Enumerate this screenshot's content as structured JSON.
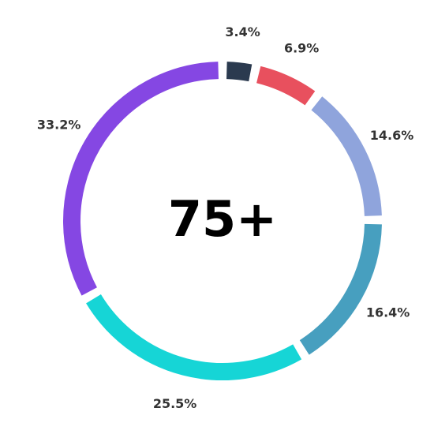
{
  "chart_data": {
    "type": "donut",
    "center_text": "75+",
    "values": [
      3.4,
      6.9,
      14.6,
      16.4,
      25.5,
      33.2
    ],
    "value_labels": [
      "3.4%",
      "6.9%",
      "14.6%",
      "16.4%",
      "25.5%",
      "33.2%"
    ],
    "colors": [
      "#2b3a4f",
      "#e8505e",
      "#8fa4dc",
      "#479fbf",
      "#16d5d6",
      "#8547e3"
    ]
  }
}
